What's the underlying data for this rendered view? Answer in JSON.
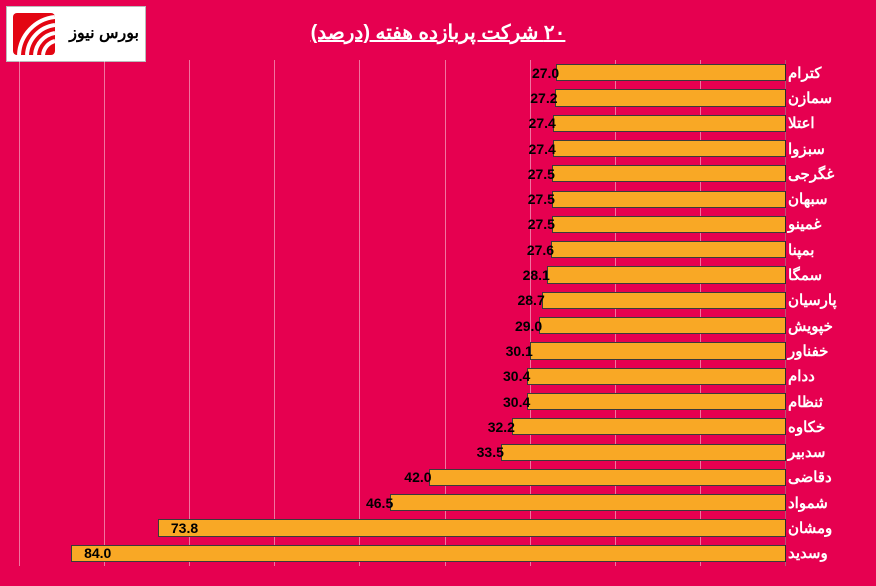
{
  "logo": {
    "text": "بورس نیوز",
    "icon_color": "#e30613",
    "text_color": "#000000"
  },
  "chart": {
    "type": "bar-horizontal",
    "title": "۲۰ شرکت پربازده هفته (درصد)",
    "title_color": "#ffffff",
    "title_fontsize": 20,
    "background_color": "#e60050",
    "bar_color": "#f9a825",
    "bar_border_color": "#3a3a3a",
    "gridline_color": "#ffffff",
    "gridline_opacity": 0.45,
    "label_color_axis": "#ffffff",
    "label_color_value": "#000000",
    "label_fontsize": 15,
    "value_fontsize": 14,
    "xmin": 0,
    "xmax": 90,
    "xtick_step": 10,
    "categories": [
      "کترام",
      "سمازن",
      "اعتلا",
      "سبزوا",
      "غگرجی",
      "سبهان",
      "غمینو",
      "بمپنا",
      "سمگا",
      "پارسیان",
      "خپویش",
      "خفناور",
      "ددام",
      "ثنظام",
      "خکاوه",
      "سدبیر",
      "دقاضی",
      "شمواد",
      "ومشان",
      "وسدید"
    ],
    "values": [
      27.0,
      27.2,
      27.4,
      27.4,
      27.5,
      27.5,
      27.5,
      27.6,
      28.1,
      28.7,
      29.0,
      30.1,
      30.4,
      30.4,
      32.2,
      33.5,
      42.0,
      46.5,
      73.8,
      84.0
    ],
    "value_labels": [
      "27.0",
      "27.2",
      "27.4",
      "27.4",
      "27.5",
      "27.5",
      "27.5",
      "27.6",
      "28.1",
      "28.7",
      "29.0",
      "30.1",
      "30.4",
      "30.4",
      "32.2",
      "33.5",
      "42.0",
      "46.5",
      "73.8",
      "84.0"
    ]
  }
}
